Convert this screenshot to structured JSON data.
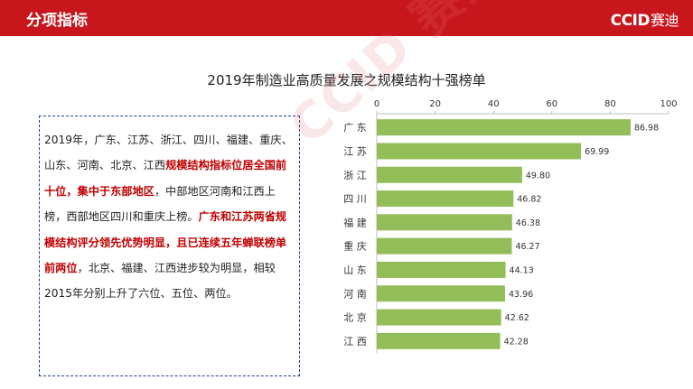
{
  "header": {
    "title": "分项指标",
    "logo_main": "CCID",
    "logo_sub": "赛迪"
  },
  "watermark": "CCID 赛迪",
  "paragraph": [
    {
      "text": "2019年，广东、江苏、浙江、四川、福建、重庆、山东、河南、北京、江西",
      "hl": false
    },
    {
      "text": "规模结构指标位居全国前十位，集中于东部地区",
      "hl": true
    },
    {
      "text": "，中部地区河南和江西上榜，西部地区四川和重庆上榜。",
      "hl": false
    },
    {
      "text": "广东和江苏两省规模结构评分领先优势明显，且已连续五年蝉联榜单前两位",
      "hl": true
    },
    {
      "text": "，北京、福建、江西进步较为明显，相较2015年分别上升了六位、五位、两位。",
      "hl": false
    }
  ],
  "chart_data": {
    "type": "bar",
    "orientation": "horizontal",
    "title": "2019年制造业高质量发展之规模结构十强榜单",
    "categories": [
      "广 东",
      "江 苏",
      "浙 江",
      "四 川",
      "福 建",
      "重 庆",
      "山 东",
      "河 南",
      "北 京",
      "江 西"
    ],
    "values": [
      86.98,
      69.99,
      49.8,
      46.82,
      46.38,
      46.27,
      44.13,
      43.96,
      42.62,
      42.28
    ],
    "value_labels": [
      "86.98",
      "69.99",
      "49.80",
      "46.82",
      "46.38",
      "46.27",
      "44.13",
      "43.96",
      "42.62",
      "42.28"
    ],
    "xlim": [
      0,
      100
    ],
    "xticks": [
      "0",
      "20",
      "40",
      "60",
      "80",
      "100"
    ],
    "xtick_values": [
      0,
      20,
      40,
      60,
      80,
      100
    ],
    "axis_position": "top",
    "grid": false,
    "bar_color": "#93bd59"
  }
}
